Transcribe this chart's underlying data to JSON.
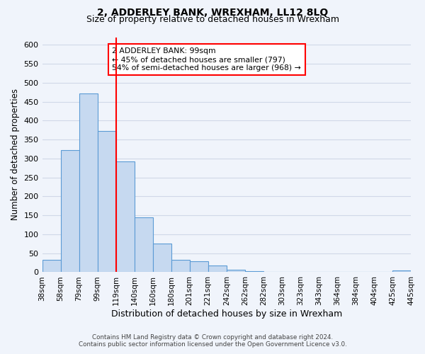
{
  "title": "2, ADDERLEY BANK, WREXHAM, LL12 8LQ",
  "subtitle": "Size of property relative to detached houses in Wrexham",
  "bar_values": [
    32,
    322,
    472,
    372,
    292,
    145,
    75,
    32,
    29,
    17,
    7,
    2,
    1,
    1,
    1,
    1,
    1,
    1,
    1,
    4
  ],
  "categories": [
    "38sqm",
    "58sqm",
    "79sqm",
    "99sqm",
    "119sqm",
    "140sqm",
    "160sqm",
    "180sqm",
    "201sqm",
    "221sqm",
    "242sqm",
    "262sqm",
    "282sqm",
    "303sqm",
    "323sqm",
    "343sqm",
    "364sqm",
    "384sqm",
    "404sqm",
    "425sqm",
    "445sqm"
  ],
  "bar_color": "#c6d9f0",
  "bar_edge_color": "#5b9bd5",
  "ylim": [
    0,
    620
  ],
  "yticks": [
    0,
    50,
    100,
    150,
    200,
    250,
    300,
    350,
    400,
    450,
    500,
    550,
    600
  ],
  "ylabel": "Number of detached properties",
  "xlabel": "Distribution of detached houses by size in Wrexham",
  "annotation_title": "2 ADDERLEY BANK: 99sqm",
  "annotation_line1": "← 45% of detached houses are smaller (797)",
  "annotation_line2": "54% of semi-detached houses are larger (968) →",
  "footer_line1": "Contains HM Land Registry data © Crown copyright and database right 2024.",
  "footer_line2": "Contains public sector information licensed under the Open Government Licence v3.0.",
  "grid_color": "#d0d8e8",
  "background_color": "#f0f4fb",
  "red_line_index": 3
}
